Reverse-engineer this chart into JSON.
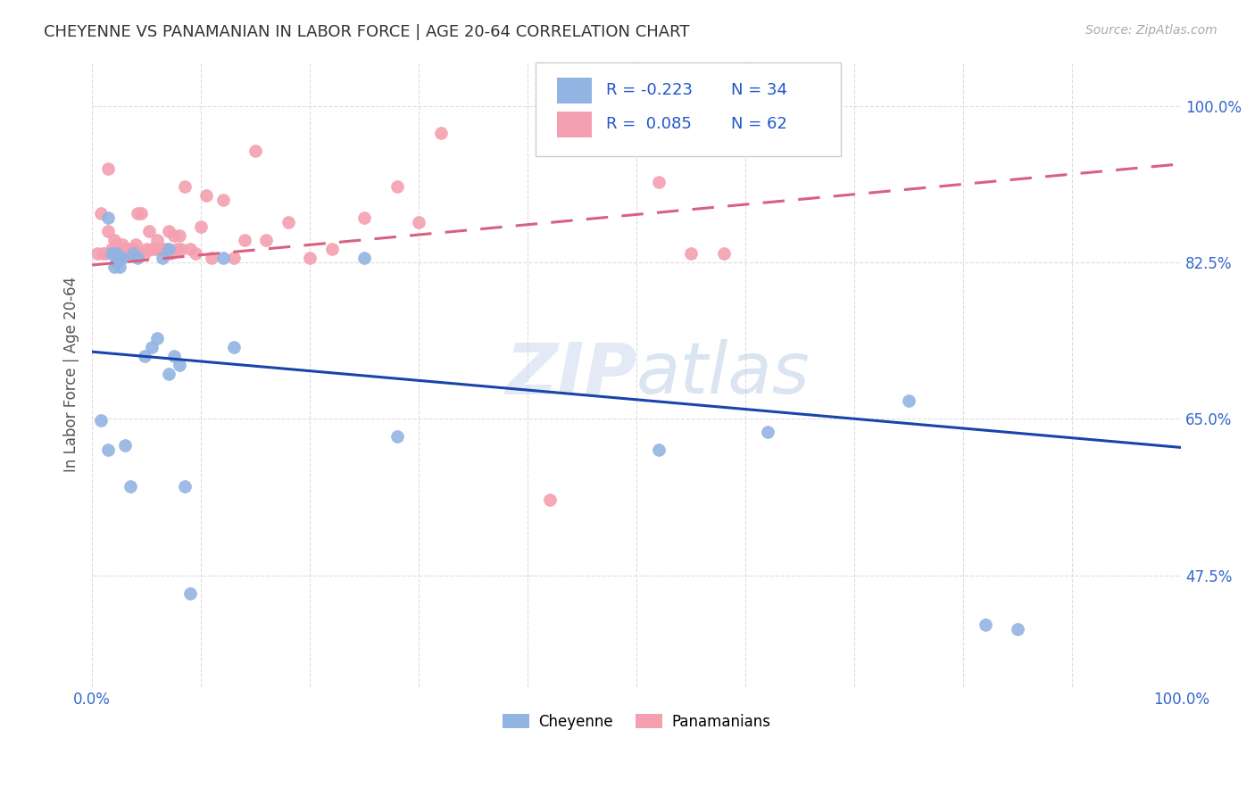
{
  "title": "CHEYENNE VS PANAMANIAN IN LABOR FORCE | AGE 20-64 CORRELATION CHART",
  "source": "Source: ZipAtlas.com",
  "ylabel": "In Labor Force | Age 20-64",
  "watermark": "ZIPatlas",
  "cheyenne_R": -0.223,
  "cheyenne_N": 34,
  "panamanian_R": 0.085,
  "panamanian_N": 62,
  "cheyenne_color": "#92b4e3",
  "panamanian_color": "#f4a0b0",
  "cheyenne_line_color": "#1a44aa",
  "panamanian_line_color": "#d96080",
  "bg_color": "#ffffff",
  "grid_color": "#dddddd",
  "title_color": "#333333",
  "axis_label_color": "#3366cc",
  "legend_R_color": "#2255cc",
  "xlim": [
    0.0,
    1.0
  ],
  "ylim": [
    0.35,
    1.05
  ],
  "yticks": [
    0.475,
    0.65,
    0.825,
    1.0
  ],
  "ytick_labels": [
    "47.5%",
    "65.0%",
    "82.5%",
    "100.0%"
  ],
  "xtick_labels_left": "0.0%",
  "xtick_labels_right": "100.0%",
  "cheyenne_line_x0": 0.0,
  "cheyenne_line_y0": 0.725,
  "cheyenne_line_x1": 1.0,
  "cheyenne_line_y1": 0.618,
  "panamanian_line_x0": 0.0,
  "panamanian_line_y0": 0.822,
  "panamanian_line_x1": 1.0,
  "panamanian_line_y1": 0.935,
  "cheyenne_x": [
    0.008,
    0.015,
    0.018,
    0.02,
    0.022,
    0.022,
    0.025,
    0.025,
    0.028,
    0.03,
    0.035,
    0.038,
    0.042,
    0.048,
    0.055,
    0.06,
    0.065,
    0.07,
    0.075,
    0.08,
    0.085,
    0.09,
    0.12,
    0.13,
    0.25,
    0.28,
    0.52,
    0.62,
    0.75,
    0.82,
    0.85,
    0.07,
    0.02,
    0.015
  ],
  "cheyenne_y": [
    0.648,
    0.615,
    0.835,
    0.835,
    0.835,
    0.825,
    0.82,
    0.83,
    0.83,
    0.62,
    0.575,
    0.835,
    0.83,
    0.72,
    0.73,
    0.74,
    0.83,
    0.7,
    0.72,
    0.71,
    0.575,
    0.455,
    0.83,
    0.73,
    0.83,
    0.63,
    0.615,
    0.635,
    0.67,
    0.42,
    0.415,
    0.84,
    0.82,
    0.875
  ],
  "panamanian_x": [
    0.005,
    0.008,
    0.01,
    0.012,
    0.015,
    0.015,
    0.018,
    0.018,
    0.02,
    0.02,
    0.022,
    0.022,
    0.025,
    0.025,
    0.028,
    0.028,
    0.028,
    0.03,
    0.032,
    0.035,
    0.035,
    0.038,
    0.038,
    0.04,
    0.042,
    0.045,
    0.048,
    0.05,
    0.052,
    0.055,
    0.058,
    0.06,
    0.065,
    0.068,
    0.07,
    0.072,
    0.075,
    0.078,
    0.08,
    0.082,
    0.085,
    0.09,
    0.095,
    0.1,
    0.105,
    0.11,
    0.12,
    0.13,
    0.14,
    0.15,
    0.16,
    0.18,
    0.2,
    0.22,
    0.25,
    0.28,
    0.3,
    0.32,
    0.42,
    0.52,
    0.55,
    0.58
  ],
  "panamanian_y": [
    0.835,
    0.88,
    0.835,
    0.835,
    0.86,
    0.93,
    0.835,
    0.84,
    0.835,
    0.85,
    0.835,
    0.845,
    0.835,
    0.84,
    0.835,
    0.835,
    0.845,
    0.84,
    0.84,
    0.835,
    0.84,
    0.84,
    0.84,
    0.845,
    0.88,
    0.88,
    0.835,
    0.84,
    0.86,
    0.84,
    0.84,
    0.85,
    0.84,
    0.84,
    0.86,
    0.835,
    0.855,
    0.84,
    0.855,
    0.84,
    0.91,
    0.84,
    0.835,
    0.865,
    0.9,
    0.83,
    0.895,
    0.83,
    0.85,
    0.95,
    0.85,
    0.87,
    0.83,
    0.84,
    0.875,
    0.91,
    0.87,
    0.97,
    0.56,
    0.915,
    0.835,
    0.835
  ]
}
